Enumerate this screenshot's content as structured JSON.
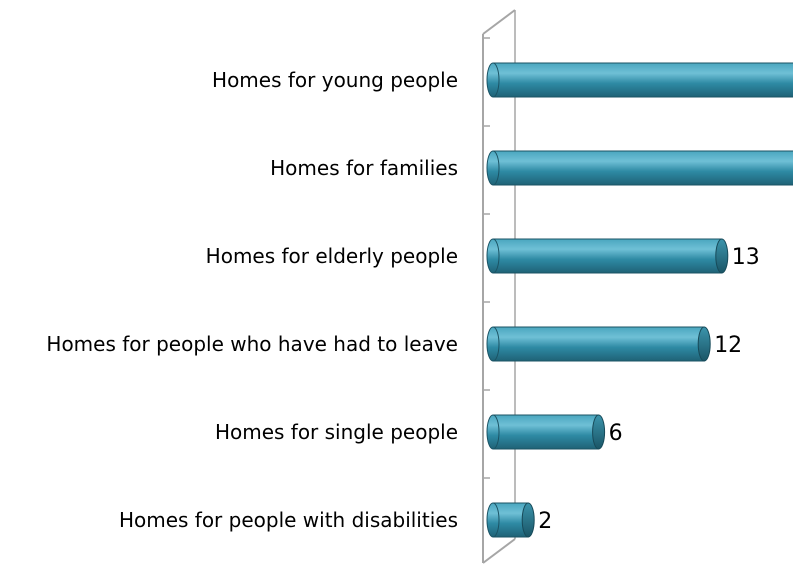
{
  "chart_data": {
    "type": "bar",
    "orientation": "horizontal",
    "style": "3d-cylinder",
    "categories": [
      "Homes for young people",
      "Homes for families",
      "Homes for elderly people",
      "Homes for people who have had to leave",
      "Homes for single people",
      "Homes for people with disabilities"
    ],
    "values": [
      null,
      null,
      13,
      12,
      6,
      2
    ],
    "data_labels": [
      "",
      "",
      "13",
      "12",
      "6",
      "2"
    ],
    "title": "",
    "xlabel": "",
    "ylabel": "",
    "xlim": [
      0,
      17.5
    ],
    "grid": false,
    "legend": "none",
    "colors": {
      "bar": "#2e8aa4",
      "bar_dark": "#1f6276",
      "bar_highlight": "#6fc0d6",
      "axis": "#a6a6a6"
    }
  }
}
